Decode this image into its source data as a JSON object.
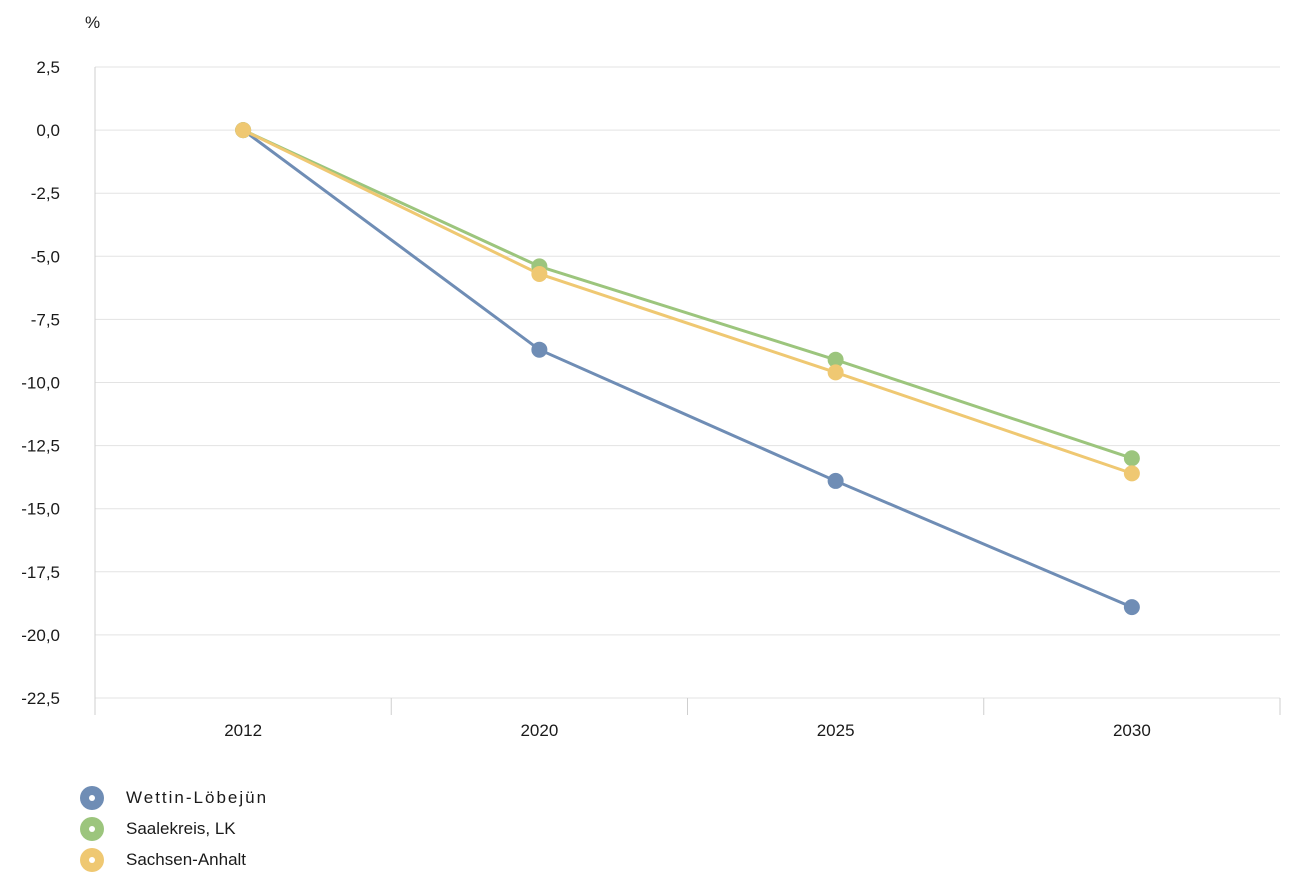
{
  "chart_data": {
    "type": "line",
    "unit_label": "%",
    "categories": [
      "2012",
      "2020",
      "2025",
      "2030"
    ],
    "y_ticks": [
      "2,5",
      "0,0",
      "-2,5",
      "-5,0",
      "-7,5",
      "-10,0",
      "-12,5",
      "-15,0",
      "-17,5",
      "-20,0",
      "-22,5"
    ],
    "ylim": [
      -22.5,
      2.5
    ],
    "grid": true,
    "legend_position": "bottom-left",
    "series": [
      {
        "name": "Wettin-Löbejün",
        "color": "#6f8db5",
        "values": [
          0.0,
          -8.7,
          -13.9,
          -18.9
        ]
      },
      {
        "name": "Saalekreis, LK",
        "color": "#9cc57d",
        "values": [
          0.0,
          -5.4,
          -9.1,
          -13.0
        ]
      },
      {
        "name": "Sachsen-Anhalt",
        "color": "#efc872",
        "values": [
          0.0,
          -5.7,
          -9.6,
          -13.6
        ]
      }
    ]
  }
}
